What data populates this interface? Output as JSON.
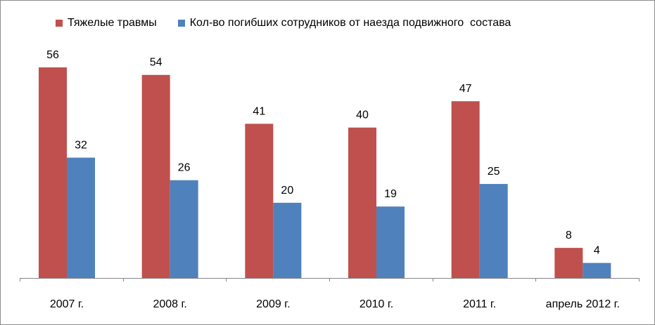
{
  "chart_data": {
    "type": "bar",
    "categories": [
      "2007  г.",
      "2008  г.",
      "2009 г.",
      "2010 г.",
      "2011 г.",
      "апрель 2012 г."
    ],
    "series": [
      {
        "name": "Тяжелые травмы",
        "color": "#c0504d",
        "values": [
          56,
          54,
          41,
          40,
          47,
          8
        ]
      },
      {
        "name": "Кол-во погибших сотрудников от наезда подвижного  состава",
        "color": "#4f81bd",
        "values": [
          32,
          26,
          20,
          19,
          25,
          4
        ]
      }
    ],
    "ylim": [
      0,
      56
    ],
    "grid": false,
    "legend_position": "top",
    "data_labels": true
  }
}
